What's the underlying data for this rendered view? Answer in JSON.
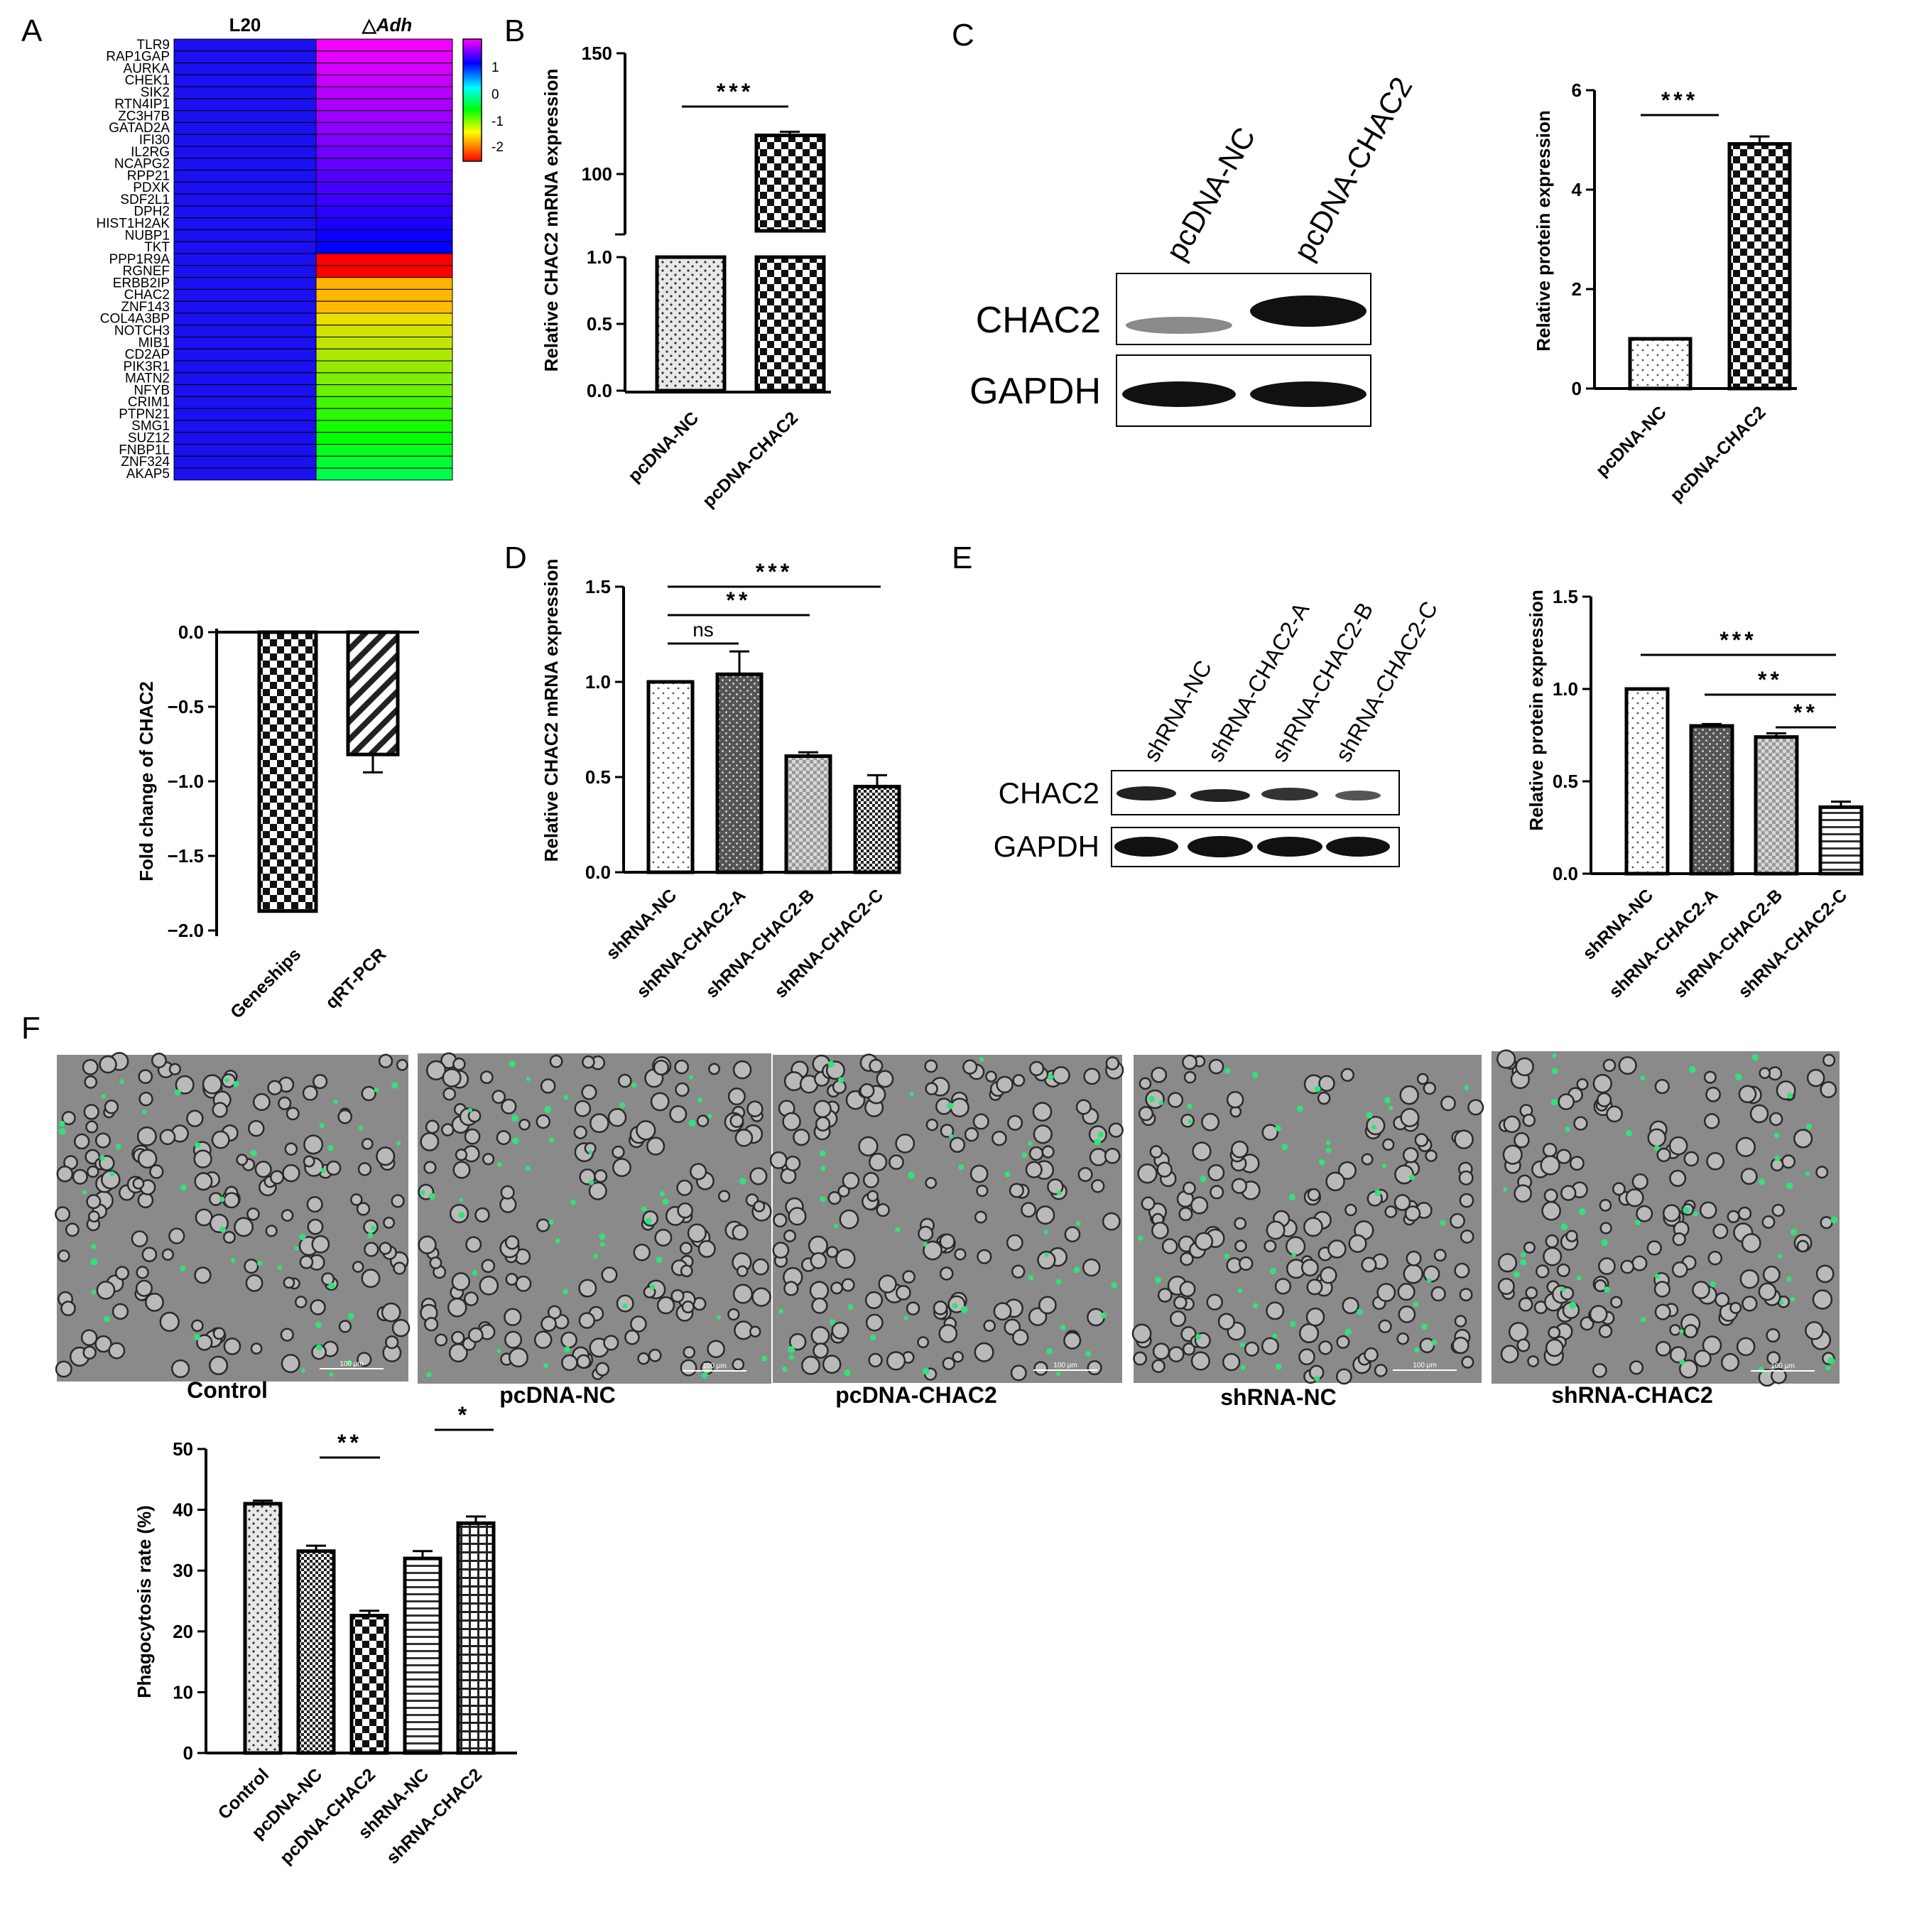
{
  "panel_letters": {
    "a": "A",
    "b": "B",
    "c": "C",
    "d": "D",
    "e": "E",
    "f": "F"
  },
  "heatmap": {
    "col1": "L20",
    "col2_prefix": "△",
    "col2": "Adh",
    "scale_ticks": [
      "1",
      "0",
      "-1",
      "-2"
    ],
    "rows": [
      {
        "gene": "TLR9",
        "v": 1.15
      },
      {
        "gene": "RAP1GAP",
        "v": 1.1
      },
      {
        "gene": "AURKA",
        "v": 1.05
      },
      {
        "gene": "CHEK1",
        "v": 1.0
      },
      {
        "gene": "SIK2",
        "v": 0.95
      },
      {
        "gene": "RTN4IP1",
        "v": 0.9
      },
      {
        "gene": "ZC3H7B",
        "v": 0.85
      },
      {
        "gene": "GATAD2A",
        "v": 0.8
      },
      {
        "gene": "IFI30",
        "v": 0.75
      },
      {
        "gene": "IL2RG",
        "v": 0.7
      },
      {
        "gene": "NCAPG2",
        "v": 0.65
      },
      {
        "gene": "RPP21",
        "v": 0.6
      },
      {
        "gene": "PDXK",
        "v": 0.55
      },
      {
        "gene": "SDF2L1",
        "v": 0.5
      },
      {
        "gene": "DPH2",
        "v": 0.45
      },
      {
        "gene": "HIST1H2AK",
        "v": 0.4
      },
      {
        "gene": "NUBP1",
        "v": 0.35
      },
      {
        "gene": "TKT",
        "v": 0.3
      },
      {
        "gene": "PPP1R9A",
        "v": -2.3
      },
      {
        "gene": "RGNEF",
        "v": -2.3
      },
      {
        "gene": "ERBB2IP",
        "v": -1.75
      },
      {
        "gene": "CHAC2",
        "v": -1.72
      },
      {
        "gene": "ZNF143",
        "v": -1.7
      },
      {
        "gene": "COL4A3BP",
        "v": -1.45
      },
      {
        "gene": "NOTCH3",
        "v": -1.4
      },
      {
        "gene": "MIB1",
        "v": -1.35
      },
      {
        "gene": "CD2AP",
        "v": -1.3
      },
      {
        "gene": "PIK3R1",
        "v": -1.25
      },
      {
        "gene": "MATN2",
        "v": -1.2
      },
      {
        "gene": "NFYB",
        "v": -1.15
      },
      {
        "gene": "CRIM1",
        "v": -1.05
      },
      {
        "gene": "PTPN21",
        "v": -1.0
      },
      {
        "gene": "SMG1",
        "v": -0.95
      },
      {
        "gene": "SUZ12",
        "v": -0.9
      },
      {
        "gene": "FNBP1L",
        "v": -0.85
      },
      {
        "gene": "ZNF324",
        "v": -0.8
      },
      {
        "gene": "AKAP5",
        "v": -0.75
      }
    ]
  },
  "chart_data": [
    {
      "id": "A-bar",
      "type": "bar",
      "ylabel": "Fold change of CHAC2",
      "categories": [
        "Geneships",
        "qRT-PCR"
      ],
      "values": [
        -1.87,
        -0.82
      ],
      "errors": [
        0,
        0.12
      ],
      "ylim": [
        -2.0,
        0
      ],
      "yticks": [
        "0.0",
        "−0.5",
        "−1.0",
        "−1.5",
        "−2.0"
      ]
    },
    {
      "id": "B",
      "type": "bar",
      "ylabel": "Relative CHAC2 mRNA expression",
      "categories": [
        "pcDNA-NC",
        "pcDNA-CHAC2"
      ],
      "values": [
        1.0,
        116
      ],
      "errors": [
        0,
        1.5
      ],
      "axis_break": true,
      "yticks": [
        "150",
        "100",
        "1.0",
        "0.5",
        "0.0"
      ],
      "significance": [
        "***"
      ]
    },
    {
      "id": "C-bar",
      "type": "bar",
      "ylabel": "Relative protein expression",
      "categories": [
        "pcDNA-NC",
        "pcDNA-CHAC2"
      ],
      "values": [
        1.0,
        4.92
      ],
      "errors": [
        0,
        0.15
      ],
      "ylim": [
        0,
        6
      ],
      "yticks": [
        "6",
        "4",
        "2",
        "0"
      ],
      "significance": [
        "***"
      ]
    },
    {
      "id": "D",
      "type": "bar",
      "ylabel": "Relative CHAC2 mRNA expression",
      "categories": [
        "shRNA-NC",
        "shRNA-CHAC2-A",
        "shRNA-CHAC2-B",
        "shRNA-CHAC2-C"
      ],
      "values": [
        1.0,
        1.04,
        0.61,
        0.45
      ],
      "errors": [
        0,
        0.12,
        0.02,
        0.06
      ],
      "ylim": [
        0,
        1.5
      ],
      "yticks": [
        "1.5",
        "1.0",
        "0.5",
        "0.0"
      ],
      "significance": [
        "***",
        "**",
        "ns"
      ]
    },
    {
      "id": "E-bar",
      "type": "bar",
      "ylabel": "Relative protein expression",
      "categories": [
        "shRNA-NC",
        "shRNA-CHAC2-A",
        "shRNA-CHAC2-B",
        "shRNA-CHAC2-C"
      ],
      "values": [
        1.0,
        0.8,
        0.74,
        0.36
      ],
      "errors": [
        0,
        0.01,
        0.02,
        0.03
      ],
      "ylim": [
        0,
        1.5
      ],
      "yticks": [
        "1.5",
        "1.0",
        "0.5",
        "0.0"
      ],
      "significance": [
        "***",
        "**",
        "**"
      ]
    },
    {
      "id": "F-bar",
      "type": "bar",
      "ylabel": "Phagocytosis rate (%)",
      "categories": [
        "Control",
        "pcDNA-NC",
        "pcDNA-CHAC2",
        "shRNA-NC",
        "shRNA-CHAC2"
      ],
      "values": [
        41,
        33.2,
        22.6,
        32,
        37.8
      ],
      "errors": [
        0.5,
        0.9,
        0.8,
        1.2,
        1.1
      ],
      "ylim": [
        0,
        50
      ],
      "yticks": [
        "50",
        "40",
        "30",
        "20",
        "10",
        "0"
      ],
      "significance": [
        "**",
        "*"
      ]
    }
  ],
  "blot_c": {
    "lanes": [
      "pcDNA-NC",
      "pcDNA-CHAC2"
    ],
    "rows": [
      "CHAC2",
      "GAPDH"
    ]
  },
  "blot_e": {
    "lanes": [
      "shRNA-NC",
      "shRNA-CHAC2-A",
      "shRNA-CHAC2-B",
      "shRNA-CHAC2-C"
    ],
    "rows": [
      "CHAC2",
      "GAPDH"
    ]
  },
  "micrographs": {
    "captions": [
      "Control",
      "pcDNA-NC",
      "pcDNA-CHAC2",
      "shRNA-NC",
      "shRNA-CHAC2"
    ],
    "scale_bar": "100 μm"
  },
  "colors": {
    "heat_high": "#ff00ff",
    "heat_mid": "#0000ff",
    "heat_low": "#ff0000",
    "green_dots": "#34e07a",
    "blue_col": "#1a10f0"
  }
}
